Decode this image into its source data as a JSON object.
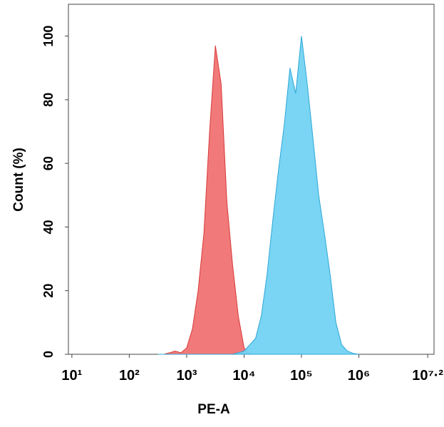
{
  "chart_data": {
    "type": "area",
    "x_label": "PE-A",
    "y_label": "Count  (%)",
    "xscale": "log",
    "x": [
      316,
      398,
      501,
      631,
      794,
      1000,
      1259,
      1585,
      1995,
      2512,
      3162,
      3981,
      5012,
      6310,
      7943,
      10000,
      12589,
      15849,
      19953,
      25119,
      31623,
      39811,
      50119,
      63096,
      79433,
      100000,
      125893,
      158489,
      199526,
      251189,
      316228,
      398107,
      501187,
      630957,
      794328,
      1000000
    ],
    "series": [
      {
        "color": "#f07272",
        "stroke": "#d83a3a",
        "values": [
          0,
          0,
          0.5,
          1,
          0.5,
          2,
          8,
          20,
          38,
          70,
          97,
          85,
          48,
          28,
          12,
          2,
          0,
          0,
          0,
          0,
          0,
          0,
          0,
          0,
          0,
          0,
          0,
          0,
          0,
          0,
          0,
          0,
          0,
          0,
          0,
          0
        ]
      },
      {
        "color": "#72d3f2",
        "stroke": "#2fa6d6",
        "values": [
          0,
          0,
          0,
          0,
          0,
          0,
          0,
          0,
          0,
          0,
          0,
          0,
          0,
          0,
          0.5,
          1,
          3,
          5,
          12,
          25,
          42,
          58,
          72,
          90,
          82,
          100,
          85,
          68,
          50,
          38,
          25,
          10,
          3,
          1,
          0.3,
          0
        ]
      }
    ],
    "xlim": [
      8.7,
      20400000
    ],
    "xticks": [
      {
        "value": 10,
        "label": "10¹"
      },
      {
        "value": 100,
        "label": "10²"
      },
      {
        "value": 1000,
        "label": "10³"
      },
      {
        "value": 10000,
        "label": "10⁴"
      },
      {
        "value": 100000,
        "label": "10⁵"
      },
      {
        "value": 1000000,
        "label": "10⁶"
      },
      {
        "value": 15848932,
        "label": "10⁷·²"
      }
    ],
    "ylim": [
      0,
      110
    ],
    "yticks": [
      0,
      20,
      40,
      60,
      80,
      100
    ]
  }
}
